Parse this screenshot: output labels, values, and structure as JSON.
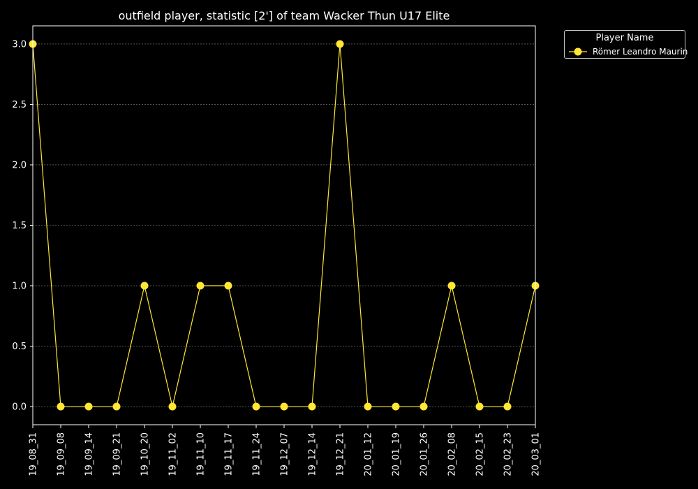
{
  "chart_data": {
    "type": "line",
    "title": "outfield player, statistic [2'] of team Wacker Thun U17 Elite",
    "xlabel": "",
    "ylabel": "",
    "categories": [
      "19_08_31",
      "19_09_08",
      "19_09_14",
      "19_09_21",
      "19_10_20",
      "19_11_02",
      "19_11_10",
      "19_11_17",
      "19_11_24",
      "19_12_07",
      "19_12_14",
      "19_12_21",
      "20_01_12",
      "20_01_19",
      "20_01_26",
      "20_02_08",
      "20_02_15",
      "20_02_23",
      "20_03_01"
    ],
    "series": [
      {
        "name": "Römer Leandro Maurin",
        "color": "#ffe733",
        "values": [
          3,
          0,
          0,
          0,
          1,
          0,
          1,
          1,
          0,
          0,
          0,
          3,
          0,
          0,
          0,
          1,
          0,
          0,
          1
        ]
      }
    ],
    "ylim": [
      -0.15,
      3.15
    ],
    "yticks": [
      0.0,
      0.5,
      1.0,
      1.5,
      2.0,
      2.5,
      3.0
    ],
    "ytick_labels": [
      "0.0",
      "0.5",
      "1.0",
      "1.5",
      "2.0",
      "2.5",
      "3.0"
    ],
    "grid": "horizontal dashed",
    "legend": {
      "title": "Player Name",
      "placement": "outside-top-right"
    },
    "colors": {
      "background": "#000000",
      "axes": "#ffffff",
      "grid": "#888888",
      "line": "#ffe733"
    }
  }
}
